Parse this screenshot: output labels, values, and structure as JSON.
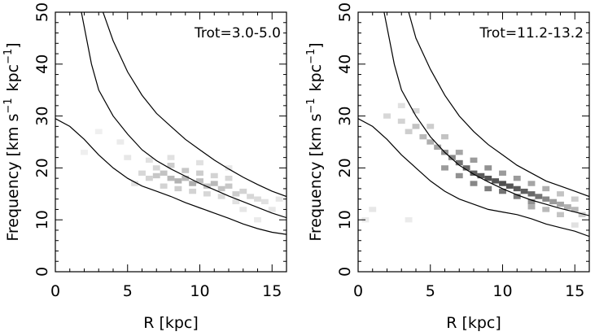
{
  "chart_data": [
    {
      "type": "heatmap",
      "title": "Trot=3.0-5.0",
      "xlabel": "R [kpc]",
      "ylabel": "Frequency [km s^-1 kpc^-1]",
      "ylabel_main": "Frequency [km s",
      "ylabel_sup": "−1",
      "ylabel_unit": "kpc",
      "ylabel_sup2": "−1",
      "ylabel_close": "]",
      "xlim": [
        0,
        16
      ],
      "ylim": [
        0,
        50
      ],
      "xticks": [
        0,
        5,
        10,
        15
      ],
      "yticks": [
        0,
        10,
        20,
        30,
        40,
        50
      ],
      "xtick_labels": [
        "0",
        "5",
        "10",
        "15"
      ],
      "ytick_labels": [
        "0",
        "10",
        "20",
        "30",
        "40",
        "50"
      ],
      "curves": [
        {
          "x": [
            0,
            1,
            2,
            3,
            4,
            5,
            6,
            7,
            8,
            9,
            10,
            11,
            12,
            13,
            14,
            15,
            16
          ],
          "y": [
            29.5,
            28,
            25.5,
            22.5,
            20,
            18,
            16.5,
            15.5,
            14.5,
            13.3,
            12.3,
            11.3,
            10.3,
            9.2,
            8.3,
            7.6,
            7.2
          ]
        },
        {
          "x": [
            1.8,
            2.5,
            3,
            4,
            5,
            6,
            7,
            8,
            9,
            10,
            11,
            12,
            13,
            14,
            15,
            16
          ],
          "y": [
            50,
            40,
            35,
            30,
            26.5,
            23.5,
            21.4,
            19.8,
            18.4,
            17,
            15.8,
            14.6,
            13.5,
            12.4,
            11.3,
            10.4
          ]
        },
        {
          "x": [
            3.3,
            4,
            5,
            6,
            7,
            8,
            9,
            10,
            11,
            12,
            13,
            14,
            15,
            16
          ],
          "y": [
            50,
            44.5,
            38.5,
            34,
            30.5,
            28,
            25.5,
            23.5,
            21.5,
            19.8,
            18.2,
            16.8,
            15.5,
            14.5
          ]
        }
      ],
      "cells": [
        [
          6,
          19,
          0.2
        ],
        [
          6.5,
          18,
          0.22
        ],
        [
          7,
          18.5,
          0.28
        ],
        [
          7.5,
          19,
          0.3
        ],
        [
          8,
          18,
          0.35
        ],
        [
          8.5,
          17.5,
          0.38
        ],
        [
          9,
          18,
          0.35
        ],
        [
          9.5,
          17,
          0.4
        ],
        [
          10,
          17.5,
          0.32
        ],
        [
          10.5,
          16.5,
          0.3
        ],
        [
          11,
          17,
          0.35
        ],
        [
          11.5,
          16,
          0.3
        ],
        [
          12,
          16.5,
          0.28
        ],
        [
          12.5,
          15,
          0.25
        ],
        [
          13,
          15.5,
          0.22
        ],
        [
          13.5,
          14.5,
          0.2
        ],
        [
          14,
          14,
          0.18
        ],
        [
          14.5,
          13.5,
          0.15
        ],
        [
          7,
          20,
          0.2
        ],
        [
          8,
          20.5,
          0.25
        ],
        [
          9,
          19.5,
          0.28
        ],
        [
          10,
          19,
          0.25
        ],
        [
          11,
          18.5,
          0.22
        ],
        [
          12,
          18,
          0.2
        ],
        [
          7.5,
          16.5,
          0.22
        ],
        [
          8.5,
          16,
          0.25
        ],
        [
          9.5,
          15.5,
          0.22
        ],
        [
          10.5,
          15,
          0.2
        ],
        [
          11.5,
          14.5,
          0.18
        ],
        [
          12.5,
          13.5,
          0.15
        ],
        [
          5.5,
          17,
          0.15
        ],
        [
          5,
          22,
          0.12
        ],
        [
          4.5,
          25,
          0.1
        ],
        [
          3,
          27,
          0.08
        ],
        [
          2,
          23,
          0.08
        ],
        [
          13,
          12,
          0.12
        ],
        [
          14,
          10,
          0.1
        ],
        [
          6.5,
          21.5,
          0.15
        ],
        [
          8,
          22,
          0.15
        ],
        [
          10,
          21,
          0.15
        ],
        [
          12,
          20,
          0.12
        ],
        [
          15,
          12,
          0.12
        ],
        [
          15.5,
          14,
          0.12
        ]
      ]
    },
    {
      "type": "heatmap",
      "title": "Trot=11.2-13.2",
      "xlabel": "R [kpc]",
      "ylabel": "Frequency [km s^-1 kpc^-1]",
      "ylabel_main": "Frequency [km s",
      "ylabel_sup": "−1",
      "ylabel_unit": "kpc",
      "ylabel_sup2": "−1",
      "ylabel_close": "]",
      "xlim": [
        0,
        16
      ],
      "ylim": [
        0,
        50
      ],
      "xticks": [
        0,
        5,
        10,
        15
      ],
      "yticks": [
        0,
        10,
        20,
        30,
        40,
        50
      ],
      "xtick_labels": [
        "0",
        "5",
        "10",
        "15"
      ],
      "ytick_labels": [
        "0",
        "10",
        "20",
        "30",
        "40",
        "50"
      ],
      "curves": [
        {
          "x": [
            0,
            1,
            2,
            3,
            4,
            5,
            6,
            7,
            8,
            9,
            10,
            11,
            12,
            13,
            14,
            15,
            16
          ],
          "y": [
            29.5,
            28,
            25.5,
            22.5,
            20,
            17.5,
            15.5,
            14,
            13,
            12,
            11.5,
            11,
            10.2,
            9.2,
            8.5,
            7.8,
            6.8
          ]
        },
        {
          "x": [
            1.8,
            2.5,
            3,
            4,
            5,
            6,
            7,
            8,
            9,
            10,
            11,
            12,
            13,
            14,
            15,
            16
          ],
          "y": [
            50,
            40,
            35,
            30,
            26,
            23,
            20.5,
            18.8,
            17.3,
            16,
            14.8,
            13.8,
            13,
            12.2,
            11.5,
            10.8
          ]
        },
        {
          "x": [
            3.5,
            4,
            5,
            6,
            7,
            8,
            9,
            10,
            11,
            12,
            13,
            14,
            15,
            16
          ],
          "y": [
            50,
            45,
            39,
            34,
            30,
            27,
            24.5,
            22.5,
            20.5,
            19,
            17.5,
            16.5,
            15.5,
            14.5
          ]
        }
      ],
      "cells": [
        [
          2,
          30,
          0.2
        ],
        [
          3,
          29,
          0.22
        ],
        [
          3.5,
          27,
          0.25
        ],
        [
          4,
          28,
          0.3
        ],
        [
          4.5,
          26,
          0.35
        ],
        [
          5,
          25,
          0.4
        ],
        [
          5.5,
          24,
          0.45
        ],
        [
          6,
          23,
          0.55
        ],
        [
          6.5,
          22,
          0.6
        ],
        [
          7,
          21,
          0.7
        ],
        [
          7.5,
          20,
          0.75
        ],
        [
          8,
          19,
          0.8
        ],
        [
          8.5,
          18.5,
          0.82
        ],
        [
          9,
          18,
          0.85
        ],
        [
          9.5,
          17.5,
          0.85
        ],
        [
          10,
          17,
          0.88
        ],
        [
          10.5,
          16.5,
          0.85
        ],
        [
          11,
          16,
          0.82
        ],
        [
          11.5,
          15.5,
          0.8
        ],
        [
          12,
          15,
          0.75
        ],
        [
          12.5,
          14.5,
          0.7
        ],
        [
          13,
          14,
          0.6
        ],
        [
          13.5,
          13.5,
          0.5
        ],
        [
          14,
          13,
          0.45
        ],
        [
          14.5,
          12.5,
          0.4
        ],
        [
          15,
          12,
          0.35
        ],
        [
          6,
          20,
          0.5
        ],
        [
          7,
          18.5,
          0.55
        ],
        [
          8,
          17,
          0.6
        ],
        [
          9,
          16,
          0.65
        ],
        [
          10,
          15.5,
          0.7
        ],
        [
          11,
          14.5,
          0.65
        ],
        [
          12,
          13.5,
          0.55
        ],
        [
          7,
          23,
          0.45
        ],
        [
          8,
          21.5,
          0.5
        ],
        [
          9,
          20,
          0.55
        ],
        [
          10,
          19,
          0.5
        ],
        [
          11,
          18,
          0.5
        ],
        [
          12,
          17,
          0.45
        ],
        [
          13,
          16,
          0.4
        ],
        [
          5,
          28,
          0.25
        ],
        [
          4,
          31,
          0.2
        ],
        [
          3,
          32,
          0.15
        ],
        [
          6,
          26,
          0.3
        ],
        [
          14,
          15,
          0.3
        ],
        [
          15,
          14,
          0.25
        ],
        [
          15.5,
          11,
          0.25
        ],
        [
          14,
          11,
          0.3
        ],
        [
          13,
          12,
          0.35
        ],
        [
          12,
          12.5,
          0.4
        ],
        [
          1,
          12,
          0.12
        ],
        [
          0.5,
          10,
          0.1
        ],
        [
          15,
          9,
          0.15
        ],
        [
          3.5,
          10,
          0.1
        ]
      ]
    }
  ]
}
